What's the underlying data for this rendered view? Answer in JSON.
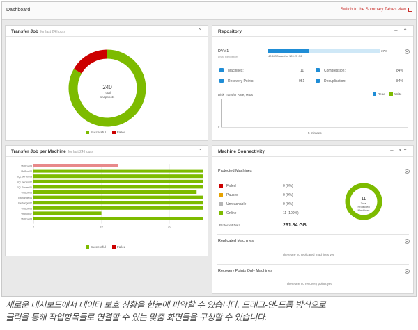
{
  "header": {
    "title": "Dashboard",
    "switch_link": "Switch to the Summary Tables view"
  },
  "transfer_job": {
    "title": "Transfer Job",
    "subtitle": "for last 24 hours",
    "total_value": "240",
    "total_label_line1": "Total",
    "total_label_line2": "snapshots",
    "legend": [
      {
        "label": "Successful",
        "color": "#7dbb00"
      },
      {
        "label": "Failed",
        "color": "#cc0000"
      }
    ]
  },
  "repository": {
    "title": "Repository",
    "name": "DVM1",
    "type": "DVM Repository",
    "usage_text": "40.6 GB used of 109.25 GB",
    "usage_percent_label": "37%",
    "usage_fraction": 0.37,
    "stats": {
      "machines_label": "Machines:",
      "machines_value": "11",
      "compression_label": "Compression:",
      "compression_value": "84%",
      "recovery_label": "Recovery Points:",
      "recovery_value": "951",
      "dedup_label": "Deduplication:",
      "dedup_value": "84%"
    },
    "transfer_rate_title": "Disk Transfer Rate, MB/s",
    "transfer_legend": [
      {
        "label": "Read",
        "color": "#1f8dd6"
      },
      {
        "label": "Write",
        "color": "#7dbb00"
      }
    ],
    "axis_x_label": "5 minutes",
    "axis_y_label": "0"
  },
  "transfer_per_machine": {
    "title": "Transfer Job per Machine",
    "subtitle": "for last 24 hours",
    "legend": [
      {
        "label": "Successful",
        "color": "#7dbb00"
      },
      {
        "label": "Failed",
        "color": "#cc0000"
      }
    ]
  },
  "machine_connectivity": {
    "title": "Machine Connectivity",
    "protected_title": "Protected Machines",
    "rows": [
      {
        "label": "Failed",
        "value": "0 (0%)",
        "color": "#cc0000"
      },
      {
        "label": "Paused",
        "value": "0 (0%)",
        "color": "#e6a100"
      },
      {
        "label": "Unreachable",
        "value": "0 (0%)",
        "color": "#b5b5b5"
      },
      {
        "label": "Online",
        "value": "11 (100%)",
        "color": "#7dbb00"
      }
    ],
    "protected_data_label": "Protected Data",
    "protected_data_value": "261.84 GB",
    "donut_value": "11",
    "donut_line1": "Total",
    "donut_line2": "Protected",
    "donut_line3": "Machines",
    "replicated_title": "Replicated Machines",
    "replicated_empty": "There are no replicated machines yet",
    "recovery_only_title": "Recovery Points Only Machines",
    "recovery_only_empty": "There are no recovery points yet"
  },
  "caption": {
    "line1": "새로운 대시보드에서 데이터 보호 상황을 한눈에 파악할 수 있습니다. 드래그-앤-드롭 방식으로",
    "line2": "클릭을 통해 작업항목들로 연결할 수 있는 맞춤 화면들을 구성할 수 있습니다."
  },
  "chart_data": [
    {
      "type": "pie",
      "title": "Transfer Job",
      "categories": [
        "Successful",
        "Failed"
      ],
      "values": [
        200,
        40
      ],
      "total": 240
    },
    {
      "type": "bar",
      "orientation": "horizontal",
      "title": "Transfer Job per Machine",
      "categories": [
        "VirtBox-03",
        "VirtBox-04",
        "SQL Server 03",
        "SQL Server 02",
        "SQL Server 01",
        "VirtBox-05",
        "Exchange 01",
        "Exchange 02",
        "VirtBox-06",
        "VirtBox-07",
        "VirtBox-08"
      ],
      "xlim": [
        0,
        25
      ],
      "x_ticks": [
        0,
        10,
        20
      ],
      "series": [
        {
          "name": "Successful",
          "color": "#7dbb00",
          "values": [
            0,
            25,
            25,
            25,
            25,
            24,
            25,
            25,
            25,
            10,
            25
          ]
        },
        {
          "name": "Failed",
          "color": "#e8898a",
          "values": [
            12.5,
            0,
            0,
            0,
            0,
            0,
            0,
            0,
            0,
            0,
            0
          ]
        }
      ]
    },
    {
      "type": "pie",
      "title": "Machine Connectivity",
      "categories": [
        "Online"
      ],
      "values": [
        11
      ],
      "total": 11
    }
  ]
}
